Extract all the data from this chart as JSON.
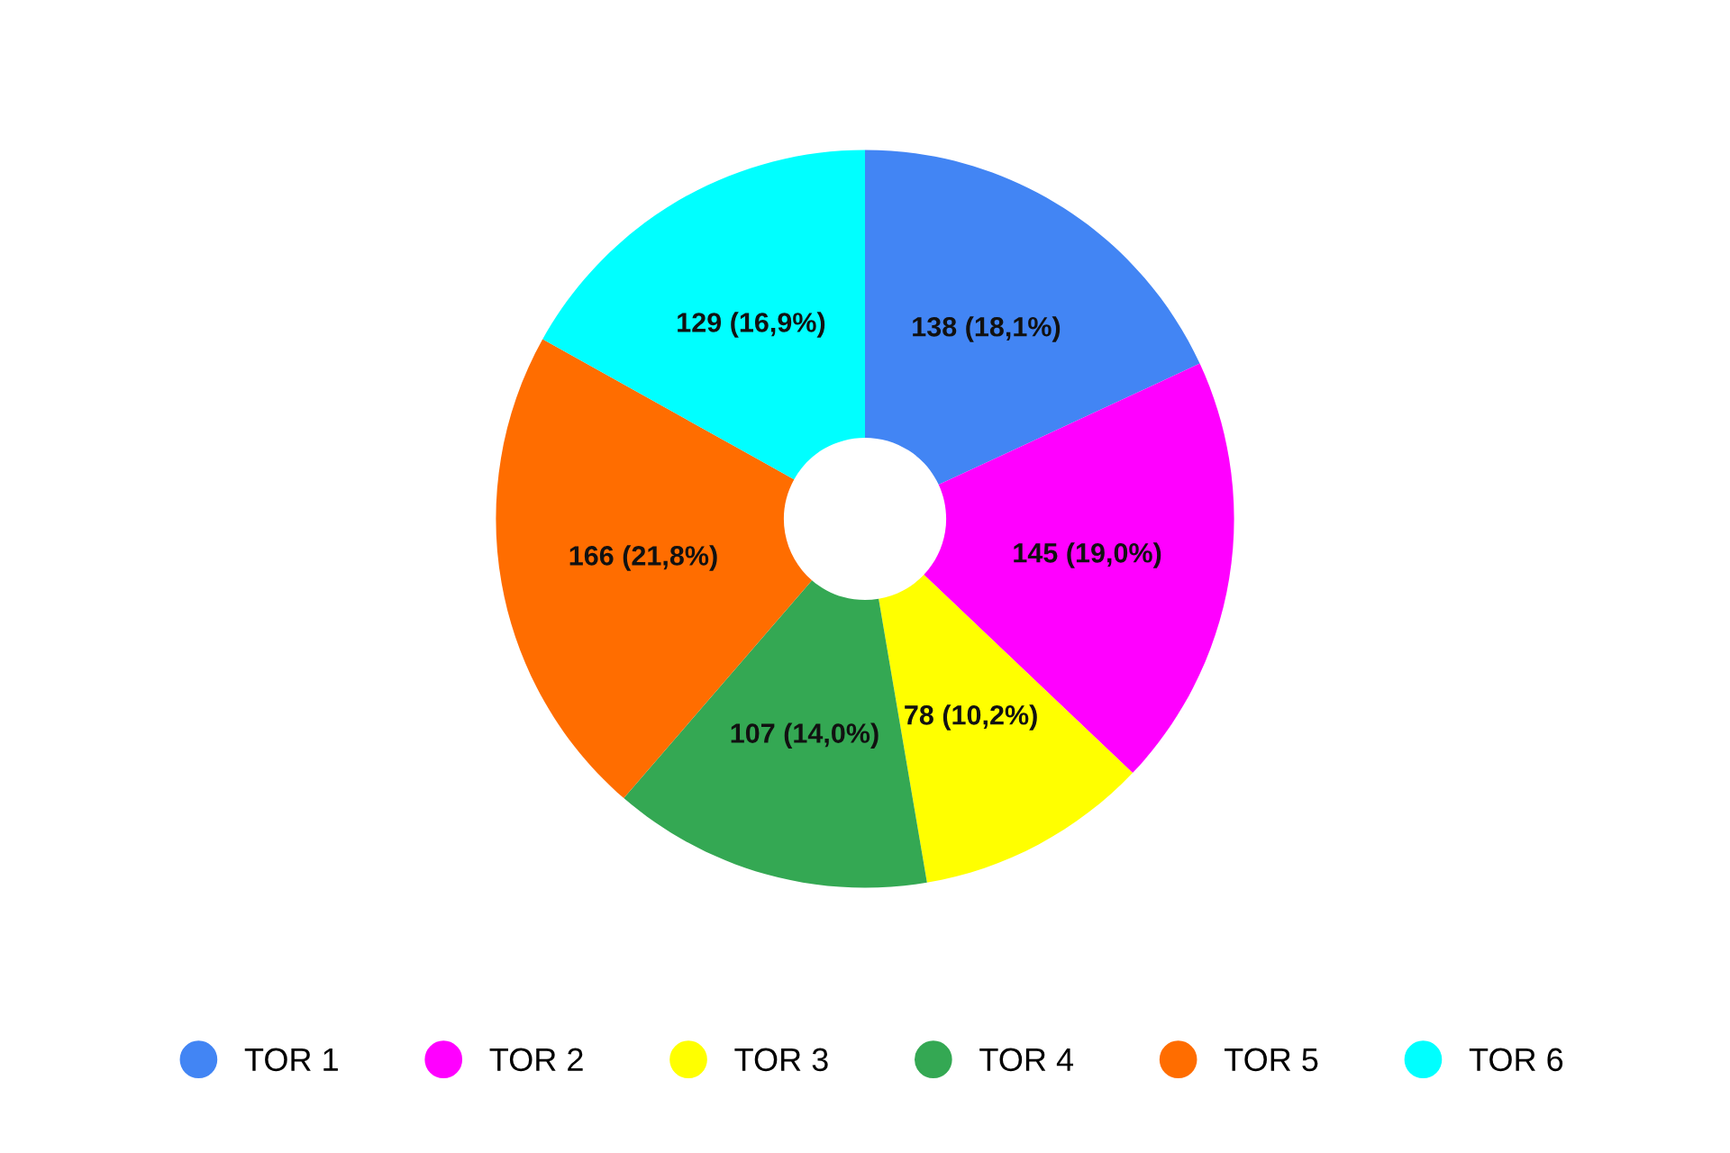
{
  "chart_data": {
    "type": "donut",
    "categories": [
      "TOR 1",
      "TOR 2",
      "TOR 3",
      "TOR 4",
      "TOR 5",
      "TOR 6"
    ],
    "values": [
      138,
      145,
      78,
      107,
      166,
      129
    ],
    "colors": [
      "#4285f4",
      "#ff00ff",
      "#ffff00",
      "#34a853",
      "#ff6d00",
      "#00ffff"
    ],
    "value_labels": [
      "138 (18,1%)",
      "145 (19,0%)",
      "78 (10,2%)",
      "107 (14,0%)",
      "166 (21,8%)",
      "129 (16,9%)"
    ],
    "legend": "bottom"
  }
}
